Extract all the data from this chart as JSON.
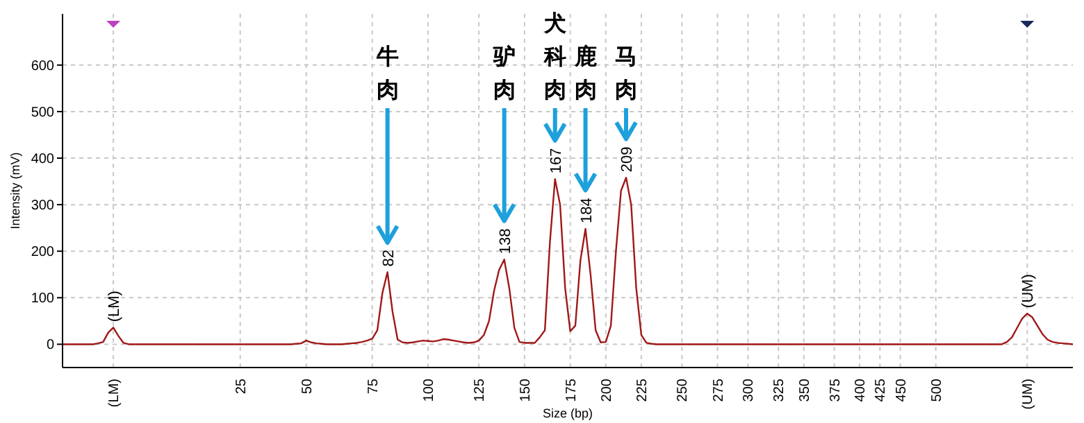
{
  "chart_data": {
    "type": "line",
    "xlabel": "Size (bp)",
    "ylabel": "Intensity (mV)",
    "categories": [
      null,
      null,
      null,
      null,
      null,
      null,
      null,
      null,
      null,
      null,
      "(LM)",
      null,
      null,
      null,
      null,
      null,
      null,
      null,
      null,
      null,
      null,
      null,
      null,
      null,
      null,
      null,
      null,
      null,
      null,
      null,
      null,
      null,
      null,
      null,
      null,
      "25",
      null,
      null,
      null,
      null,
      null,
      null,
      null,
      null,
      null,
      null,
      null,
      null,
      "50",
      null,
      null,
      null,
      null,
      null,
      null,
      null,
      null,
      null,
      null,
      null,
      null,
      "75",
      null,
      null,
      null,
      null,
      null,
      null,
      null,
      null,
      null,
      null,
      "100",
      null,
      null,
      null,
      null,
      null,
      null,
      null,
      null,
      null,
      "125",
      null,
      null,
      null,
      null,
      null,
      null,
      null,
      null,
      "150",
      null,
      null,
      null,
      null,
      null,
      null,
      null,
      null,
      "175",
      null,
      null,
      null,
      null,
      null,
      null,
      "200",
      null,
      null,
      null,
      null,
      null,
      null,
      "225",
      null,
      null,
      null,
      null,
      null,
      null,
      null,
      "250",
      null,
      null,
      null,
      null,
      null,
      null,
      "275",
      null,
      null,
      null,
      null,
      null,
      "300",
      null,
      null,
      null,
      null,
      null,
      "325",
      null,
      null,
      null,
      null,
      "350",
      null,
      null,
      null,
      null,
      null,
      "375",
      null,
      null,
      null,
      null,
      "400",
      null,
      null,
      null,
      "425",
      null,
      null,
      null,
      "450",
      null,
      null,
      null,
      null,
      null,
      null,
      "500",
      null,
      null,
      null,
      null,
      null,
      null,
      null,
      null,
      null,
      null,
      null,
      null,
      null,
      null,
      null,
      null,
      null,
      "(UM)",
      null,
      null,
      null,
      null,
      null,
      null,
      null,
      null,
      null
    ],
    "series": [
      {
        "color": "#a01818",
        "values": [
          0,
          0,
          0,
          0,
          0,
          0,
          0,
          2,
          5,
          25,
          36,
          18,
          3,
          0,
          0,
          0,
          0,
          0,
          0,
          0,
          0,
          0,
          0,
          0,
          0,
          0,
          0,
          0,
          0,
          0,
          0,
          0,
          0,
          0,
          0,
          0,
          0,
          0,
          0,
          0,
          0,
          0,
          0,
          0,
          0,
          0,
          1,
          2,
          8,
          4,
          2,
          1,
          0,
          0,
          0,
          0,
          1,
          2,
          3,
          5,
          8,
          12,
          30,
          110,
          155,
          70,
          10,
          4,
          3,
          4,
          6,
          8,
          7,
          6,
          8,
          11,
          10,
          8,
          6,
          4,
          3,
          4,
          8,
          20,
          50,
          115,
          160,
          182,
          120,
          35,
          5,
          3,
          3,
          3,
          15,
          30,
          220,
          355,
          300,
          120,
          28,
          40,
          180,
          248,
          150,
          30,
          4,
          5,
          40,
          200,
          330,
          358,
          300,
          120,
          20,
          3,
          1,
          0,
          0,
          0,
          0,
          0,
          0,
          0,
          0,
          0,
          0,
          0,
          0,
          0,
          0,
          0,
          0,
          0,
          0,
          0,
          0,
          0,
          0,
          0,
          0,
          0,
          0,
          0,
          0,
          0,
          0,
          0,
          0,
          0,
          0,
          0,
          0,
          0,
          0,
          0,
          0,
          0,
          0,
          0,
          0,
          0,
          0,
          0,
          0,
          0,
          0,
          0,
          0,
          0,
          0,
          0,
          0,
          0,
          0,
          0,
          0,
          0,
          0,
          0,
          0,
          0,
          0,
          0,
          0,
          0,
          5,
          15,
          35,
          55,
          66,
          58,
          40,
          22,
          10,
          5,
          3,
          2,
          1,
          0
        ]
      }
    ],
    "ylim": [
      -50,
      710
    ],
    "yticks": [
      0,
      100,
      200,
      300,
      400,
      500,
      600
    ],
    "grid": true,
    "marker": "none",
    "line_style": "solid",
    "annotations": [
      {
        "text": "(LM)",
        "y": 36
      },
      {
        "text": "82",
        "y": 155
      },
      "牛肉",
      {
        "text": "138",
        "y": 182
      },
      "驴肉",
      {
        "text": "167",
        "y": 355
      },
      "犬科肉",
      {
        "text": "184",
        "y": 248
      },
      "鹿肉",
      {
        "text": "209",
        "y": 358
      },
      "马肉",
      {
        "text": "(UM)",
        "y": 66
      }
    ]
  }
}
